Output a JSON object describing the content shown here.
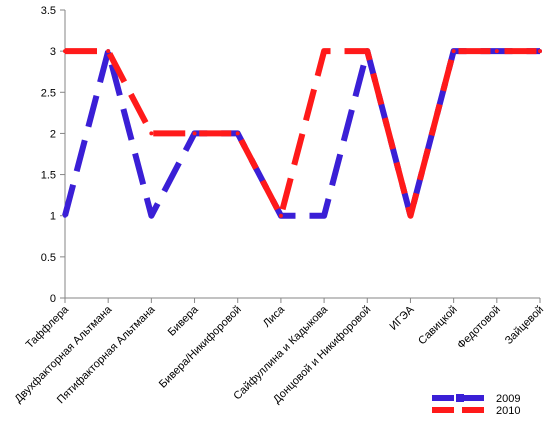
{
  "chart_data": {
    "type": "line",
    "categories": [
      "Таффлера",
      "Двухфакторная Альтмана",
      "Пятифакторная Альтмана",
      "Бивера",
      "Бивера/Никифоровой",
      "Лиса",
      "Сайфуллина и Кадыкова",
      "Донцовой и Никифоровой",
      "ИГЭА",
      "Савицкой",
      "Федотовой",
      "Зайцевой"
    ],
    "series": [
      {
        "name": "2009",
        "color": "#3a1fd6",
        "values": [
          1,
          3,
          1,
          2,
          2,
          1,
          1,
          3,
          1,
          3,
          3,
          3
        ]
      },
      {
        "name": "2010",
        "color": "#ff1a1a",
        "values": [
          3,
          3,
          2,
          2,
          2,
          1,
          3,
          3,
          1,
          3,
          3,
          3
        ]
      }
    ],
    "y_ticks": [
      "0",
      "0.5",
      "1",
      "1.5",
      "2",
      "2.5",
      "3",
      "3.5"
    ],
    "ylim": [
      0,
      3.5
    ],
    "title": "",
    "xlabel": "",
    "ylabel": "",
    "grid": false,
    "legend_position": "bottom-right",
    "line_style": "dashed"
  }
}
